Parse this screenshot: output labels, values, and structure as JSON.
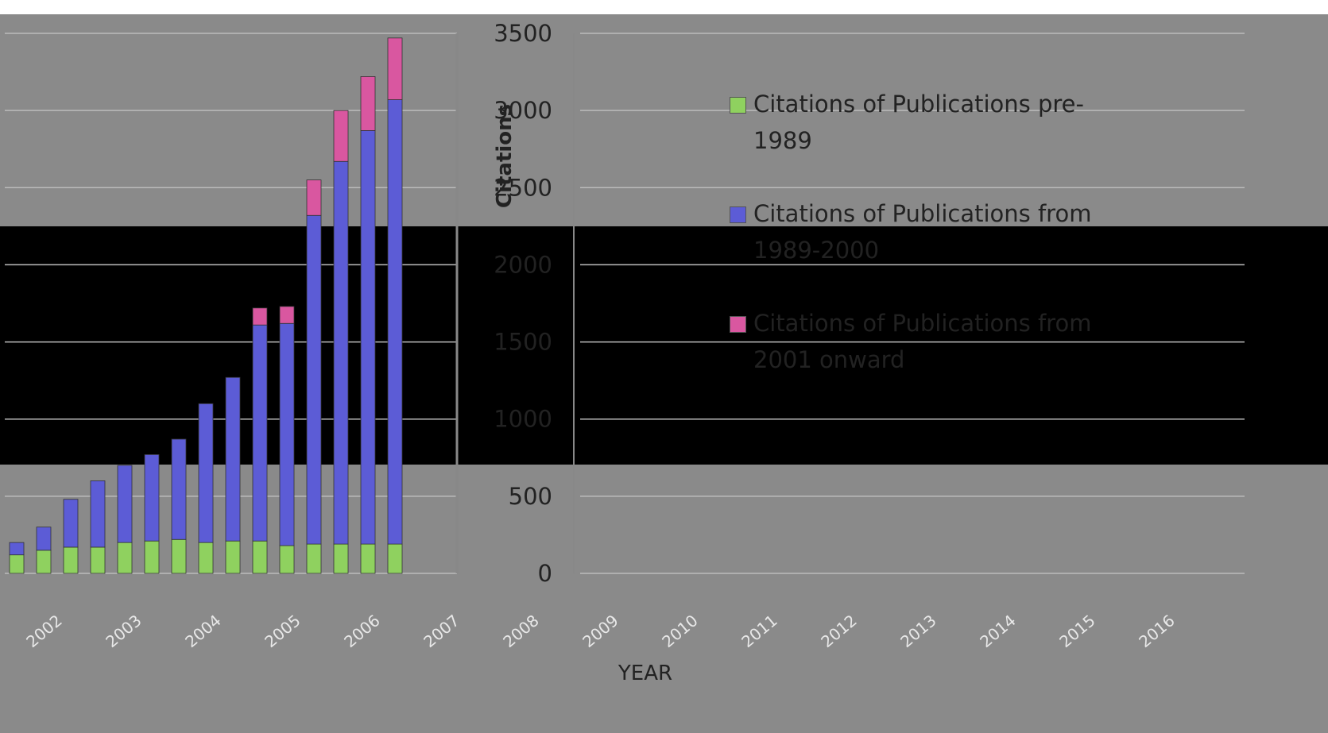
{
  "chart_data": {
    "type": "bar",
    "stacked": true,
    "categories": [
      "2002",
      "2003",
      "2004",
      "2005",
      "2006",
      "2007",
      "2008",
      "2009",
      "2010",
      "2011",
      "2012",
      "2013",
      "2014",
      "2015",
      "2016"
    ],
    "series": [
      {
        "name": "Citations of Publications pre-1989",
        "color": "#8fd15f",
        "values": [
          120,
          150,
          170,
          170,
          200,
          210,
          220,
          200,
          210,
          210,
          180,
          190,
          190,
          190,
          190
        ]
      },
      {
        "name": "Citations of Publications from 1989-2000",
        "color": "#5c5cd6",
        "values": [
          80,
          150,
          310,
          430,
          500,
          560,
          650,
          900,
          1060,
          1400,
          1440,
          2130,
          2480,
          2680,
          2880
        ]
      },
      {
        "name": "Citations of Publications from 2001 onward",
        "color": "#d957a0",
        "values": [
          0,
          0,
          0,
          0,
          0,
          0,
          0,
          0,
          0,
          110,
          110,
          230,
          330,
          350,
          400
        ]
      }
    ],
    "ylim": [
      0,
      3500
    ],
    "yticks": [
      0,
      500,
      1000,
      1500,
      2000,
      2500,
      3000,
      3500
    ],
    "ylabel": "Citations",
    "xlabel": "YEAR",
    "legend_position": "right"
  }
}
